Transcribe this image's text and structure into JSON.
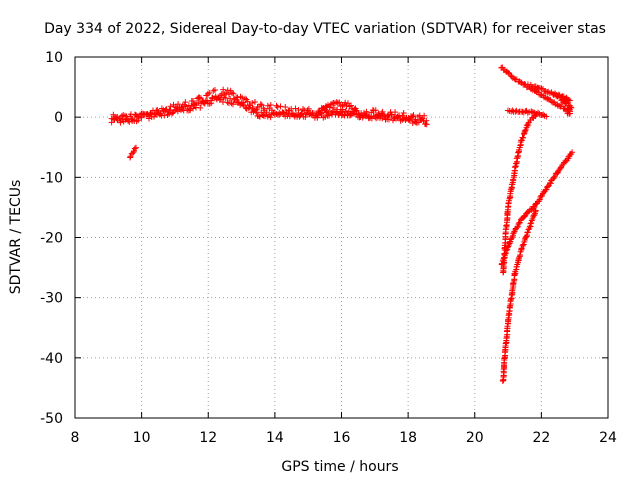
{
  "chart_data": {
    "type": "scatter",
    "title": "Day 334 of 2022, Sidereal Day-to-day VTEC variation (SDTVAR) for receiver stas",
    "xlabel": "GPS time / hours",
    "ylabel": "SDTVAR / TECUs",
    "xlim": [
      8,
      24
    ],
    "ylim": [
      -50,
      10
    ],
    "xticks": [
      8,
      10,
      12,
      14,
      16,
      18,
      20,
      22,
      24
    ],
    "yticks": [
      -50,
      -40,
      -30,
      -20,
      -10,
      0,
      10
    ],
    "grid": true,
    "marker": "+",
    "color": "#ff0000",
    "series": [
      {
        "name": "main_band",
        "points": [
          [
            9.1,
            -0.3
          ],
          [
            9.5,
            -0.2
          ],
          [
            9.9,
            0.0
          ],
          [
            10.3,
            0.5
          ],
          [
            10.7,
            1.0
          ],
          [
            11.1,
            1.5
          ],
          [
            11.5,
            2.0
          ],
          [
            11.9,
            3.0
          ],
          [
            12.2,
            3.8
          ],
          [
            12.5,
            4.0
          ],
          [
            12.8,
            3.5
          ],
          [
            13.1,
            2.8
          ],
          [
            13.4,
            2.0
          ],
          [
            13.7,
            1.6
          ],
          [
            14.0,
            1.2
          ],
          [
            14.4,
            0.8
          ],
          [
            14.8,
            0.6
          ],
          [
            15.2,
            0.7
          ],
          [
            15.6,
            1.0
          ],
          [
            16.0,
            0.9
          ],
          [
            16.4,
            0.8
          ],
          [
            16.8,
            0.6
          ],
          [
            17.2,
            0.4
          ],
          [
            17.6,
            0.2
          ],
          [
            18.0,
            -0.2
          ],
          [
            18.3,
            -0.4
          ],
          [
            18.6,
            -0.6
          ]
        ],
        "thickness_tecu": 1.6
      },
      {
        "name": "lower_band",
        "points": [
          [
            9.1,
            -0.7
          ],
          [
            9.6,
            -0.4
          ],
          [
            10.0,
            0.2
          ],
          [
            10.5,
            0.6
          ],
          [
            11.0,
            1.0
          ],
          [
            11.5,
            1.6
          ],
          [
            12.0,
            2.5
          ],
          [
            12.3,
            3.2
          ],
          [
            12.7,
            2.6
          ],
          [
            13.0,
            1.8
          ],
          [
            13.4,
            0.9
          ],
          [
            13.7,
            0.0
          ],
          [
            14.0,
            0.4
          ],
          [
            14.5,
            0.6
          ],
          [
            15.0,
            0.5
          ],
          [
            15.5,
            0.3
          ],
          [
            16.0,
            0.5
          ],
          [
            16.5,
            0.4
          ],
          [
            17.0,
            0.2
          ],
          [
            17.5,
            0.0
          ],
          [
            18.0,
            -0.4
          ],
          [
            18.6,
            -0.8
          ]
        ],
        "thickness_tecu": 1.0
      },
      {
        "name": "bump_15_16",
        "points": [
          [
            15.3,
            0.8
          ],
          [
            15.6,
            1.8
          ],
          [
            15.9,
            2.2
          ],
          [
            16.2,
            2.0
          ],
          [
            16.5,
            1.4
          ]
        ],
        "thickness_tecu": 0.8
      },
      {
        "name": "short_segment_9_7",
        "points": [
          [
            9.65,
            -6.6
          ],
          [
            9.72,
            -6.0
          ],
          [
            9.8,
            -5.3
          ],
          [
            9.85,
            -4.8
          ]
        ],
        "thickness_tecu": 0.3
      },
      {
        "name": "top_right_diagonal",
        "points": [
          [
            20.8,
            8.3
          ],
          [
            21.0,
            7.3
          ],
          [
            21.3,
            6.0
          ],
          [
            21.6,
            5.0
          ],
          [
            21.9,
            4.0
          ],
          [
            22.2,
            3.0
          ],
          [
            22.5,
            2.0
          ],
          [
            22.9,
            1.0
          ]
        ],
        "thickness_tecu": 0.3
      },
      {
        "name": "top_right_upper",
        "points": [
          [
            21.6,
            5.3
          ],
          [
            21.8,
            5.0
          ],
          [
            22.0,
            4.6
          ],
          [
            22.3,
            4.0
          ],
          [
            22.5,
            3.6
          ],
          [
            22.7,
            3.0
          ],
          [
            22.9,
            2.5
          ]
        ],
        "thickness_tecu": 0.4
      },
      {
        "name": "top_right_cluster",
        "points": [
          [
            22.4,
            3.8
          ],
          [
            22.6,
            3.4
          ],
          [
            22.8,
            3.0
          ],
          [
            22.6,
            2.6
          ],
          [
            22.8,
            2.2
          ],
          [
            22.9,
            1.5
          ],
          [
            22.75,
            1.0
          ],
          [
            22.9,
            0.3
          ]
        ],
        "thickness_tecu": 0.4
      },
      {
        "name": "horizontal_near_one",
        "points": [
          [
            21.0,
            1.0
          ],
          [
            21.3,
            1.0
          ],
          [
            21.6,
            0.9
          ],
          [
            21.9,
            0.6
          ],
          [
            22.1,
            0.3
          ],
          [
            22.2,
            0.1
          ]
        ],
        "thickness_tecu": 0.3
      },
      {
        "name": "steep_curve_a",
        "points": [
          [
            20.85,
            -26.0
          ],
          [
            20.9,
            -22.0
          ],
          [
            20.95,
            -18.0
          ],
          [
            21.0,
            -15.0
          ],
          [
            21.1,
            -12.0
          ],
          [
            21.2,
            -9.0
          ],
          [
            21.3,
            -6.0
          ],
          [
            21.4,
            -4.0
          ],
          [
            21.5,
            -2.5
          ],
          [
            21.6,
            -1.0
          ],
          [
            21.75,
            0.0
          ],
          [
            21.9,
            0.7
          ]
        ],
        "thickness_tecu": 0.4
      },
      {
        "name": "ascending_line_b",
        "points": [
          [
            20.8,
            -24.5
          ],
          [
            20.9,
            -23.0
          ],
          [
            21.0,
            -21.5
          ],
          [
            21.2,
            -19.0
          ],
          [
            21.4,
            -17.0
          ],
          [
            21.6,
            -15.8
          ],
          [
            21.8,
            -14.8
          ],
          [
            22.0,
            -13.2
          ],
          [
            22.2,
            -11.5
          ],
          [
            22.4,
            -9.8
          ],
          [
            22.6,
            -8.2
          ],
          [
            22.8,
            -6.8
          ],
          [
            22.95,
            -5.7
          ]
        ],
        "thickness_tecu": 0.3
      },
      {
        "name": "steep_curve_c",
        "points": [
          [
            20.85,
            -44.0
          ],
          [
            20.9,
            -40.0
          ],
          [
            20.95,
            -37.0
          ],
          [
            21.0,
            -34.0
          ],
          [
            21.05,
            -32.0
          ],
          [
            21.1,
            -30.0
          ],
          [
            21.15,
            -28.0
          ],
          [
            21.2,
            -26.0
          ],
          [
            21.3,
            -24.0
          ],
          [
            21.4,
            -22.0
          ],
          [
            21.5,
            -20.5
          ],
          [
            21.6,
            -19.0
          ],
          [
            21.7,
            -17.5
          ],
          [
            21.8,
            -16.0
          ],
          [
            21.85,
            -15.2
          ]
        ],
        "thickness_tecu": 0.4
      }
    ]
  }
}
